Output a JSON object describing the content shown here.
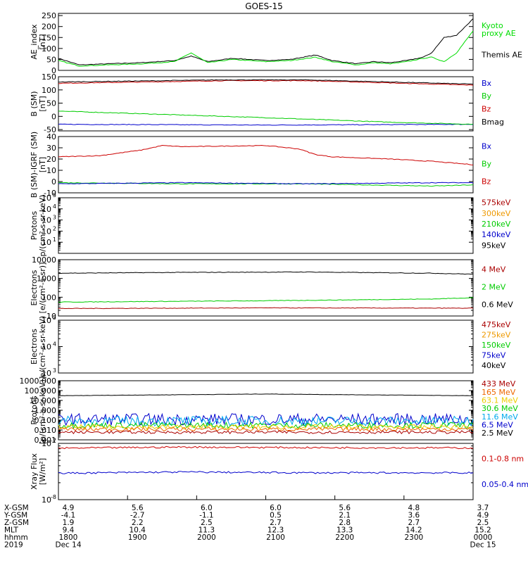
{
  "title": "GOES-15",
  "chart_data": [
    {
      "type": "line",
      "id": "ae",
      "ylabel": "AE_index\n[nT]",
      "yscale": "linear",
      "ylim": [
        0,
        260
      ],
      "ticks": [
        0,
        50,
        100,
        150,
        200,
        250
      ],
      "tick_labels": [
        "0",
        "50",
        "100",
        "150",
        "200",
        "250"
      ],
      "legend": [
        {
          "label": "Kyoto\nproxy AE",
          "color": "#00dd00"
        },
        {
          "label": "Themis AE",
          "color": "#000000"
        }
      ],
      "series": [
        {
          "name": "Themis AE",
          "color": "#000000",
          "x": [
            0,
            0.05,
            0.12,
            0.2,
            0.28,
            0.32,
            0.36,
            0.42,
            0.5,
            0.56,
            0.62,
            0.66,
            0.72,
            0.76,
            0.8,
            0.84,
            0.88,
            0.9,
            0.93,
            0.96,
            1.0
          ],
          "y": [
            55,
            25,
            30,
            35,
            45,
            65,
            40,
            55,
            45,
            50,
            70,
            45,
            30,
            40,
            35,
            45,
            60,
            80,
            150,
            160,
            235
          ]
        },
        {
          "name": "Kyoto proxy AE",
          "color": "#00dd00",
          "x": [
            0,
            0.05,
            0.12,
            0.2,
            0.28,
            0.32,
            0.36,
            0.42,
            0.5,
            0.56,
            0.62,
            0.66,
            0.72,
            0.76,
            0.8,
            0.84,
            0.88,
            0.9,
            0.93,
            0.96,
            1.0
          ],
          "y": [
            45,
            20,
            25,
            30,
            40,
            80,
            35,
            50,
            40,
            45,
            60,
            40,
            25,
            35,
            30,
            40,
            55,
            60,
            40,
            80,
            180
          ]
        }
      ]
    },
    {
      "type": "line",
      "id": "bsm",
      "ylabel": "B (SM)\n[nT]",
      "yscale": "linear",
      "ylim": [
        -55,
        150
      ],
      "ticks": [
        -50,
        0,
        50,
        100,
        150
      ],
      "tick_labels": [
        "-50",
        "0",
        "50",
        "100",
        "150"
      ],
      "legend": [
        {
          "label": "Bx",
          "color": "#0000cc"
        },
        {
          "label": "By",
          "color": "#00cc00"
        },
        {
          "label": "Bz",
          "color": "#cc0000"
        },
        {
          "label": "Bmag",
          "color": "#000000"
        }
      ],
      "series": [
        {
          "name": "Bx",
          "color": "#0000cc",
          "x": [
            0,
            0.5,
            1.0
          ],
          "y": [
            -30,
            -33,
            -30
          ]
        },
        {
          "name": "By",
          "color": "#00cc00",
          "x": [
            0,
            0.1,
            0.5,
            0.8,
            1.0
          ],
          "y": [
            20,
            15,
            -5,
            -22,
            -30
          ]
        },
        {
          "name": "Bz",
          "color": "#cc0000",
          "x": [
            0,
            0.4,
            0.6,
            1.0
          ],
          "y": [
            125,
            135,
            135,
            118
          ]
        },
        {
          "name": "Bmag",
          "color": "#000000",
          "x": [
            0,
            0.4,
            0.6,
            1.0
          ],
          "y": [
            130,
            138,
            138,
            122
          ]
        }
      ]
    },
    {
      "type": "line",
      "id": "bigrf",
      "ylabel": "B (SM)-IGRF (SM)\n[nT]",
      "yscale": "linear",
      "ylim": [
        -10,
        40
      ],
      "ticks": [
        -10,
        0,
        10,
        20,
        30,
        40
      ],
      "tick_labels": [
        "-10",
        "0",
        "10",
        "20",
        "30",
        "40"
      ],
      "legend": [
        {
          "label": "Bx",
          "color": "#0000cc"
        },
        {
          "label": "By",
          "color": "#00cc00"
        },
        {
          "label": "Bz",
          "color": "#cc0000"
        }
      ],
      "series": [
        {
          "name": "Bz",
          "color": "#cc0000",
          "x": [
            0,
            0.1,
            0.2,
            0.25,
            0.3,
            0.5,
            0.58,
            0.62,
            0.66,
            0.8,
            0.9,
            1.0
          ],
          "y": [
            22,
            23,
            28,
            32,
            31,
            32,
            29,
            24,
            22,
            20,
            18,
            15
          ]
        },
        {
          "name": "By",
          "color": "#00cc00",
          "x": [
            0,
            0.3,
            0.6,
            0.9,
            1.0
          ],
          "y": [
            -1,
            -2,
            -2,
            -4,
            -3
          ]
        },
        {
          "name": "Bx",
          "color": "#0000cc",
          "x": [
            0,
            0.3,
            0.6,
            0.9,
            1.0
          ],
          "y": [
            -2,
            -1,
            -2,
            -1,
            -1
          ]
        }
      ]
    },
    {
      "type": "line",
      "id": "protons_kev",
      "ylabel": "Protons\np/(cm²-s-sr-keV)",
      "yscale": "log",
      "ylim": [
        1,
        100000
      ],
      "ticks": [
        10,
        100,
        1000,
        10000,
        100000
      ],
      "tick_labels": [
        "10",
        "10",
        "10",
        "10",
        "10"
      ],
      "tick_exp": [
        "1",
        "2",
        "3",
        "4",
        "5"
      ],
      "legend": [
        {
          "label": "575keV",
          "color": "#aa0000"
        },
        {
          "label": "300keV",
          "color": "#ee9900"
        },
        {
          "label": "210keV",
          "color": "#00cc00"
        },
        {
          "label": "140keV",
          "color": "#0000cc"
        },
        {
          "label": "95keV",
          "color": "#000000"
        }
      ],
      "series": []
    },
    {
      "type": "line",
      "id": "electrons_mev",
      "ylabel": "Electrons\n[e/(cm²-s-sr)]",
      "yscale": "log",
      "ylim": [
        10,
        10000
      ],
      "ticks": [
        10,
        100,
        1000,
        10000
      ],
      "tick_labels": [
        "10",
        "100",
        "1000",
        "10000"
      ],
      "legend": [
        {
          "label": "4 MeV",
          "color": "#aa0000"
        },
        {
          "label": "2 MeV",
          "color": "#00cc00"
        },
        {
          "label": "0.6 MeV",
          "color": "#000000"
        }
      ],
      "series": [
        {
          "name": "0.6 MeV",
          "color": "#000000",
          "x": [
            0,
            0.3,
            0.6,
            0.9,
            1.0
          ],
          "y": [
            1900,
            2100,
            2200,
            1900,
            1700
          ]
        },
        {
          "name": "2 MeV",
          "color": "#00cc00",
          "x": [
            0,
            0.5,
            0.9,
            1.0
          ],
          "y": [
            55,
            65,
            80,
            95
          ]
        },
        {
          "name": "4 MeV",
          "color": "#aa0000",
          "x": [
            0,
            0.5,
            1.0
          ],
          "y": [
            25,
            27,
            26
          ]
        }
      ]
    },
    {
      "type": "line",
      "id": "electrons_kev",
      "ylabel": "Electrons\ne/(cm²-s-sr-keV)",
      "yscale": "log",
      "ylim": [
        1000,
        100000
      ],
      "ticks": [
        1000,
        10000,
        100000
      ],
      "tick_labels": [
        "10",
        "10",
        "10"
      ],
      "tick_exp": [
        "3",
        "4",
        "5"
      ],
      "legend": [
        {
          "label": "475keV",
          "color": "#aa0000"
        },
        {
          "label": "275keV",
          "color": "#ee9900"
        },
        {
          "label": "150keV",
          "color": "#00cc00"
        },
        {
          "label": "75keV",
          "color": "#0000cc"
        },
        {
          "label": "40keV",
          "color": "#000000"
        }
      ],
      "series": []
    },
    {
      "type": "line",
      "id": "protons_mev",
      "ylabel": "Protons\n[p/(cm²-s-sr-keV)]",
      "yscale": "log",
      "ylim": [
        0.001,
        1000
      ],
      "ticks": [
        0.001,
        0.01,
        0.1,
        1,
        10,
        100,
        1000
      ],
      "tick_labels": [
        "0.001",
        "0.010",
        "0.100",
        "1.000",
        "10.000",
        "100.000",
        "1000.000"
      ],
      "legend": [
        {
          "label": "433 MeV",
          "color": "#aa0000"
        },
        {
          "label": "165 MeV",
          "color": "#ee6600"
        },
        {
          "label": "63.1 MeV",
          "color": "#eecc00"
        },
        {
          "label": "30.6 MeV",
          "color": "#00cc00"
        },
        {
          "label": "11.6 MeV",
          "color": "#00aaee"
        },
        {
          "label": "6.5 MeV",
          "color": "#0000cc"
        },
        {
          "label": "2.5 MeV",
          "color": "#000000"
        }
      ],
      "series": [
        {
          "name": "2.5 MeV",
          "color": "#000000",
          "x": [
            0,
            0.5,
            1.0
          ],
          "y": [
            30,
            45,
            30
          ]
        },
        {
          "name": "6.5 MeV",
          "color": "#0000cc",
          "level": 0.12,
          "noise": 0.6
        },
        {
          "name": "11.6 MeV",
          "color": "#00aaee",
          "level": 0.08,
          "noise": 0.5
        },
        {
          "name": "30.6 MeV",
          "color": "#00cc00",
          "level": 0.03,
          "noise": 0.3
        },
        {
          "name": "63.1 MeV",
          "color": "#eecc00",
          "level": 0.02,
          "noise": 0.25
        },
        {
          "name": "165 MeV",
          "color": "#ee6600",
          "level": 0.012,
          "noise": 0.2
        },
        {
          "name": "433 MeV",
          "color": "#aa0000",
          "level": 0.006,
          "noise": 0.15
        }
      ]
    },
    {
      "type": "line",
      "id": "xray",
      "ylabel": "Xray Flux\n[W/m²]",
      "yscale": "log",
      "ylim": [
        1e-08,
        1e-07
      ],
      "ticks": [
        1e-08,
        1e-07
      ],
      "tick_labels": [
        "10",
        "10"
      ],
      "tick_exp": [
        "-8",
        "-7"
      ],
      "legend": [
        {
          "label": "0.1-0.8 nm",
          "color": "#cc0000"
        },
        {
          "label": "0.05-0.4 nm",
          "color": "#0000cc"
        }
      ],
      "series": [
        {
          "name": "0.1-0.8 nm",
          "color": "#cc0000",
          "x": [
            0,
            0.3,
            0.6,
            1.0
          ],
          "y": [
            8.2e-08,
            8.6e-08,
            8.4e-08,
            8.3e-08
          ]
        },
        {
          "name": "0.05-0.4 nm",
          "color": "#0000cc",
          "x": [
            0,
            0.3,
            0.6,
            1.0
          ],
          "y": [
            2.95e-08,
            3.1e-08,
            3e-08,
            3e-08
          ]
        }
      ]
    }
  ],
  "x_axis": {
    "row_labels": [
      "X-GSM",
      "Y-GSM",
      "Z-GSM",
      "MLT",
      "hhmm",
      "2019"
    ],
    "columns": [
      [
        "4.9",
        "-4.1",
        "1.9",
        "9.4",
        "1800",
        "Dec 14"
      ],
      [
        "5.6",
        "-2.7",
        "2.2",
        "10.4",
        "1900",
        ""
      ],
      [
        "6.0",
        "-1.1",
        "2.5",
        "11.3",
        "2000",
        ""
      ],
      [
        "6.0",
        "0.5",
        "2.7",
        "12.3",
        "2100",
        ""
      ],
      [
        "5.6",
        "2.1",
        "2.8",
        "13.3",
        "2200",
        ""
      ],
      [
        "4.8",
        "3.6",
        "2.7",
        "14.2",
        "2300",
        ""
      ],
      [
        "3.7",
        "4.9",
        "2.5",
        "15.2",
        "0000",
        "Dec 15"
      ]
    ]
  }
}
